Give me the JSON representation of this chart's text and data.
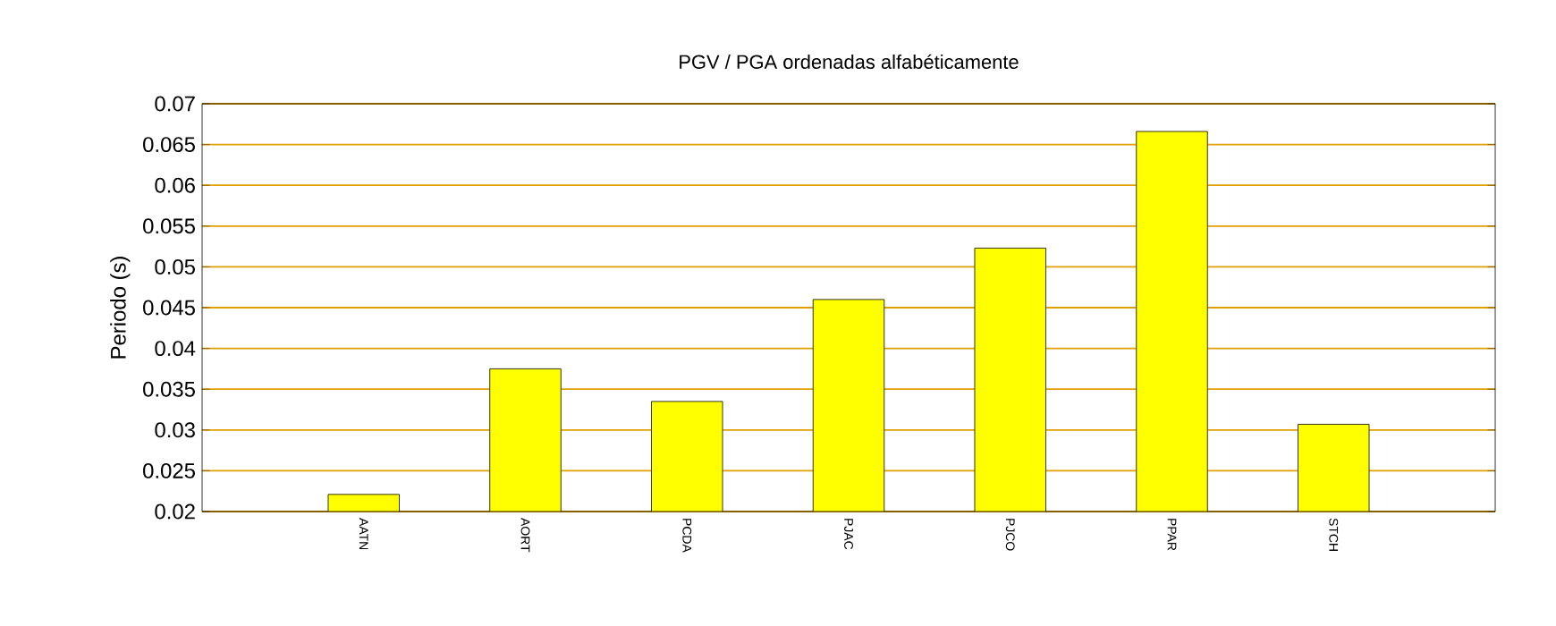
{
  "chart_data": {
    "type": "bar",
    "title": "PGV / PGA ordenadas alfabéticamente",
    "ylabel": "Periodo (s)",
    "categories": [
      "AATN",
      "AORT",
      "PCDA",
      "PJAC",
      "PJCO",
      "PPAR",
      "STCH"
    ],
    "values": [
      0.0221,
      0.0375,
      0.0335,
      0.046,
      0.0523,
      0.0666,
      0.0307
    ],
    "color": "#ffff00",
    "ylim": [
      0.02,
      0.07
    ],
    "yticks": [
      0.02,
      0.025,
      0.03,
      0.035,
      0.04,
      0.045,
      0.05,
      0.055,
      0.06,
      0.065,
      0.07
    ],
    "grid": "y"
  }
}
